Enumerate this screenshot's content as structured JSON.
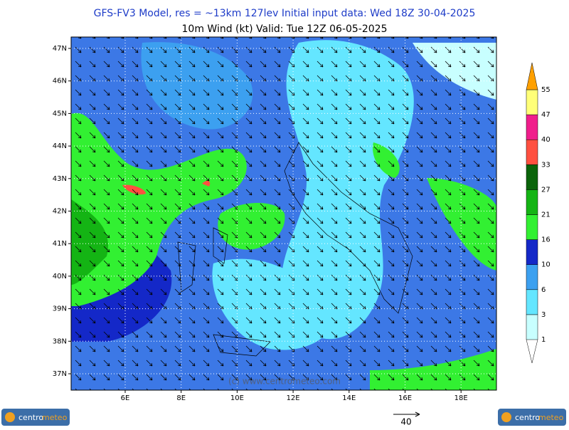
{
  "header": {
    "title": "GFS-FV3 Model, res = ~13km 127lev    Initial input data: Wed 18Z 30-04-2025",
    "subtitle": "10m Wind (kt)  Valid: Tue 12Z 06-05-2025"
  },
  "map": {
    "lat_labels": [
      "47N",
      "46N",
      "45N",
      "44N",
      "43N",
      "42N",
      "41N",
      "40N",
      "39N",
      "38N",
      "37N"
    ],
    "lon_labels": [
      "6E",
      "8E",
      "10E",
      "12E",
      "14E",
      "16E",
      "18E"
    ],
    "watermark": "(c) www.centrometeo.com"
  },
  "colorbar": {
    "levels": [
      1,
      3,
      6,
      10,
      16,
      21,
      27,
      33,
      40,
      47,
      55
    ],
    "colors": [
      "#c8ffff",
      "#64e6ff",
      "#3ca0f0",
      "#1428c8",
      "#32f032",
      "#14b414",
      "#0a640a",
      "#ff5040",
      "#f01e8c",
      "#ffff78"
    ],
    "top_color": "#ffa000"
  },
  "reference_vector": {
    "label": "40"
  },
  "logo": {
    "part_a": "centro",
    "part_b": "meteo"
  }
}
